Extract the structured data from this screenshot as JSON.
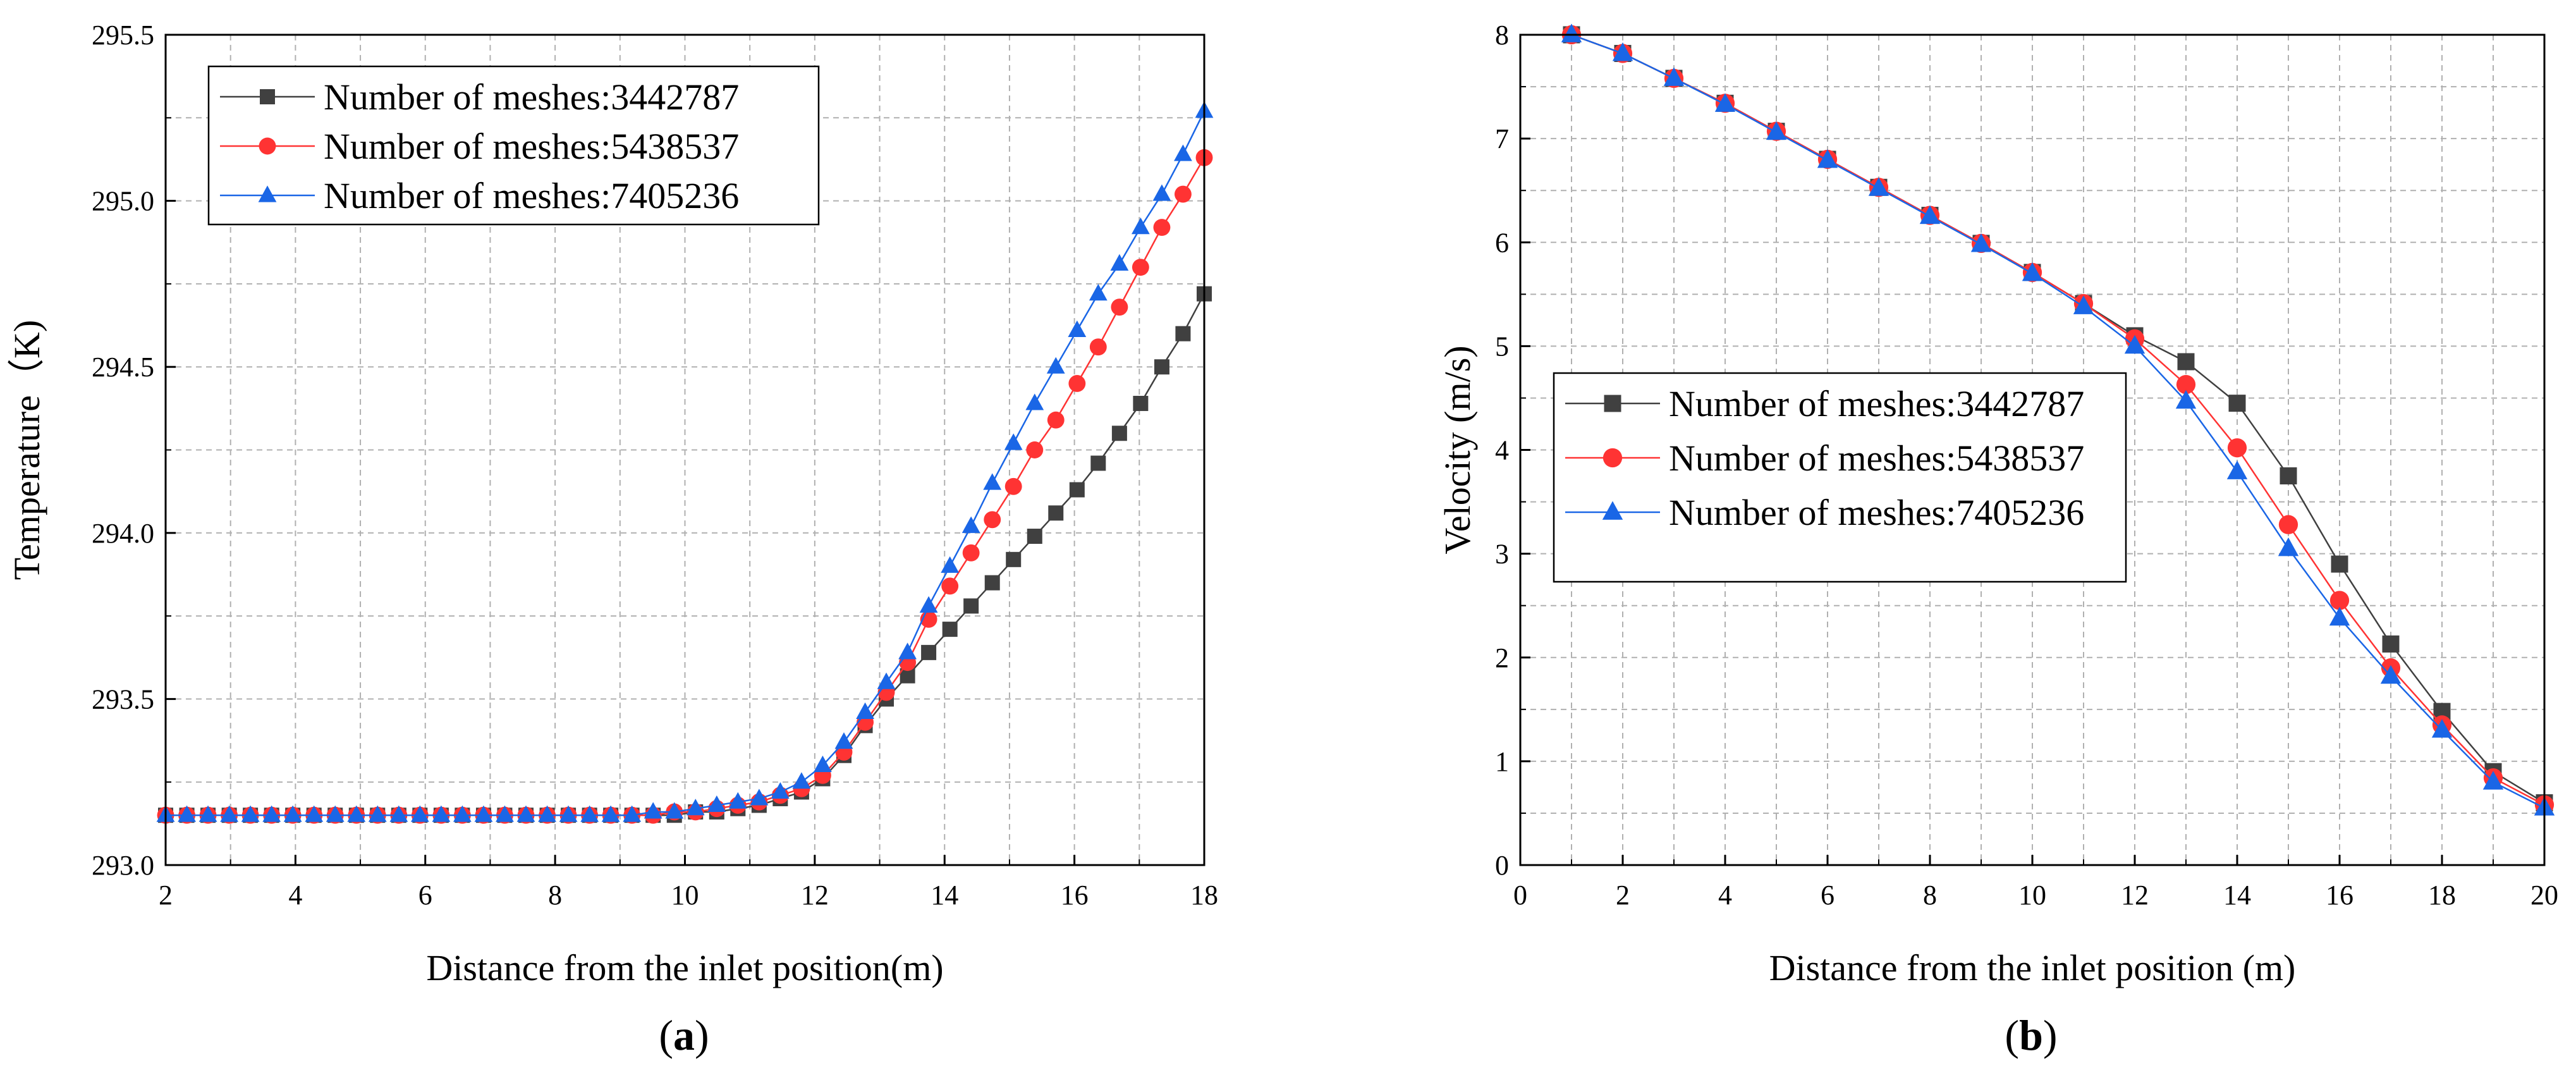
{
  "colors": {
    "series": [
      "#404040",
      "#ff3333",
      "#1a66e6"
    ],
    "grid": "#b0b0b0",
    "axis": "#000000"
  },
  "chart_data": [
    {
      "type": "line",
      "caption": "a",
      "xlabel": "Distance from the inlet position(m)",
      "ylabel": "Temperature（K)",
      "xlim": [
        2,
        18
      ],
      "ylim": [
        293.0,
        295.5
      ],
      "xticks": [
        "2",
        "4",
        "6",
        "8",
        "10",
        "12",
        "14",
        "16",
        "18"
      ],
      "yticks": [
        "293.0",
        "293.5",
        "294.0",
        "294.5",
        "295.0",
        "295.5"
      ],
      "grid": true,
      "legend_position": "top-left",
      "series": [
        {
          "name": "Number of meshes:3442787",
          "marker": "square",
          "x": [
            2,
            2.327,
            2.653,
            2.98,
            3.306,
            3.633,
            3.959,
            4.286,
            4.612,
            4.939,
            5.265,
            5.592,
            5.918,
            6.245,
            6.571,
            6.898,
            7.224,
            7.551,
            7.878,
            8.204,
            8.531,
            8.857,
            9.184,
            9.51,
            9.837,
            10.163,
            10.49,
            10.816,
            11.143,
            11.469,
            11.796,
            12.122,
            12.449,
            12.776,
            13.102,
            13.429,
            13.755,
            14.082,
            14.408,
            14.735,
            15.061,
            15.388,
            15.714,
            16.041,
            16.367,
            16.694,
            17.02,
            17.347,
            17.673,
            18
          ],
          "y": [
            293.15,
            293.15,
            293.15,
            293.15,
            293.15,
            293.15,
            293.15,
            293.15,
            293.15,
            293.15,
            293.15,
            293.15,
            293.15,
            293.15,
            293.15,
            293.15,
            293.15,
            293.15,
            293.15,
            293.15,
            293.15,
            293.15,
            293.15,
            293.15,
            293.15,
            293.16,
            293.16,
            293.17,
            293.18,
            293.2,
            293.22,
            293.26,
            293.33,
            293.42,
            293.5,
            293.57,
            293.64,
            293.71,
            293.78,
            293.85,
            293.92,
            293.99,
            294.06,
            294.13,
            294.21,
            294.3,
            294.39,
            294.5,
            294.6,
            294.72
          ]
        },
        {
          "name": "Number of meshes:5438537",
          "marker": "circle",
          "x": [
            2,
            2.327,
            2.653,
            2.98,
            3.306,
            3.633,
            3.959,
            4.286,
            4.612,
            4.939,
            5.265,
            5.592,
            5.918,
            6.245,
            6.571,
            6.898,
            7.224,
            7.551,
            7.878,
            8.204,
            8.531,
            8.857,
            9.184,
            9.51,
            9.837,
            10.163,
            10.49,
            10.816,
            11.143,
            11.469,
            11.796,
            12.122,
            12.449,
            12.776,
            13.102,
            13.429,
            13.755,
            14.082,
            14.408,
            14.735,
            15.061,
            15.388,
            15.714,
            16.041,
            16.367,
            16.694,
            17.02,
            17.347,
            17.673,
            18
          ],
          "y": [
            293.15,
            293.15,
            293.15,
            293.15,
            293.15,
            293.15,
            293.15,
            293.15,
            293.15,
            293.15,
            293.15,
            293.15,
            293.15,
            293.15,
            293.15,
            293.15,
            293.15,
            293.15,
            293.15,
            293.15,
            293.15,
            293.15,
            293.15,
            293.15,
            293.16,
            293.16,
            293.17,
            293.18,
            293.19,
            293.21,
            293.23,
            293.27,
            293.34,
            293.43,
            293.52,
            293.61,
            293.74,
            293.84,
            293.94,
            294.04,
            294.14,
            294.25,
            294.34,
            294.45,
            294.56,
            294.68,
            294.8,
            294.92,
            295.02,
            295.13
          ]
        },
        {
          "name": "Number of meshes:7405236",
          "marker": "triangle",
          "x": [
            2,
            2.327,
            2.653,
            2.98,
            3.306,
            3.633,
            3.959,
            4.286,
            4.612,
            4.939,
            5.265,
            5.592,
            5.918,
            6.245,
            6.571,
            6.898,
            7.224,
            7.551,
            7.878,
            8.204,
            8.531,
            8.857,
            9.184,
            9.51,
            9.837,
            10.163,
            10.49,
            10.816,
            11.143,
            11.469,
            11.796,
            12.122,
            12.449,
            12.776,
            13.102,
            13.429,
            13.755,
            14.082,
            14.408,
            14.735,
            15.061,
            15.388,
            15.714,
            16.041,
            16.367,
            16.694,
            17.02,
            17.347,
            17.673,
            18
          ],
          "y": [
            293.15,
            293.15,
            293.15,
            293.15,
            293.15,
            293.15,
            293.15,
            293.15,
            293.15,
            293.15,
            293.15,
            293.15,
            293.15,
            293.15,
            293.15,
            293.15,
            293.15,
            293.15,
            293.15,
            293.15,
            293.15,
            293.15,
            293.15,
            293.16,
            293.16,
            293.17,
            293.18,
            293.19,
            293.2,
            293.22,
            293.25,
            293.3,
            293.37,
            293.46,
            293.55,
            293.64,
            293.78,
            293.9,
            294.02,
            294.15,
            294.27,
            294.39,
            294.5,
            294.61,
            294.72,
            294.81,
            294.92,
            295.02,
            295.14,
            295.27
          ]
        }
      ]
    },
    {
      "type": "line",
      "caption": "b",
      "xlabel": "Distance from the inlet position (m)",
      "ylabel": "Velocity (m/s)",
      "xlim": [
        0,
        20
      ],
      "ylim": [
        0,
        8
      ],
      "xticks": [
        "0",
        "2",
        "4",
        "6",
        "8",
        "10",
        "12",
        "14",
        "16",
        "18",
        "20"
      ],
      "yticks": [
        "0",
        "1",
        "2",
        "3",
        "4",
        "5",
        "6",
        "7",
        "8"
      ],
      "grid": true,
      "legend_position": "center-left",
      "series": [
        {
          "name": "Number of meshes:3442787",
          "marker": "square",
          "x": [
            1,
            2,
            3,
            4,
            5,
            6,
            7,
            8,
            9,
            10,
            11,
            12,
            13,
            14,
            15,
            16,
            17,
            18,
            19,
            20
          ],
          "y": [
            8.0,
            7.82,
            7.58,
            7.34,
            7.07,
            6.8,
            6.53,
            6.26,
            5.99,
            5.71,
            5.41,
            5.1,
            4.85,
            4.45,
            3.75,
            2.9,
            2.13,
            1.48,
            0.9,
            0.6
          ]
        },
        {
          "name": "Number of meshes:5438537",
          "marker": "circle",
          "x": [
            1,
            2,
            3,
            4,
            5,
            6,
            7,
            8,
            9,
            10,
            11,
            12,
            13,
            14,
            15,
            16,
            17,
            18,
            19,
            20
          ],
          "y": [
            8.0,
            7.82,
            7.58,
            7.34,
            7.07,
            6.8,
            6.53,
            6.26,
            5.99,
            5.71,
            5.41,
            5.07,
            4.63,
            4.02,
            3.28,
            2.55,
            1.9,
            1.35,
            0.84,
            0.58
          ]
        },
        {
          "name": "Number of meshes:7405236",
          "marker": "triangle",
          "x": [
            1,
            2,
            3,
            4,
            5,
            6,
            7,
            8,
            9,
            10,
            11,
            12,
            13,
            14,
            15,
            16,
            17,
            18,
            19,
            20
          ],
          "y": [
            8.0,
            7.82,
            7.58,
            7.33,
            7.06,
            6.79,
            6.52,
            6.25,
            5.98,
            5.7,
            5.38,
            5.0,
            4.47,
            3.79,
            3.05,
            2.38,
            1.82,
            1.3,
            0.8,
            0.55
          ]
        }
      ]
    }
  ]
}
